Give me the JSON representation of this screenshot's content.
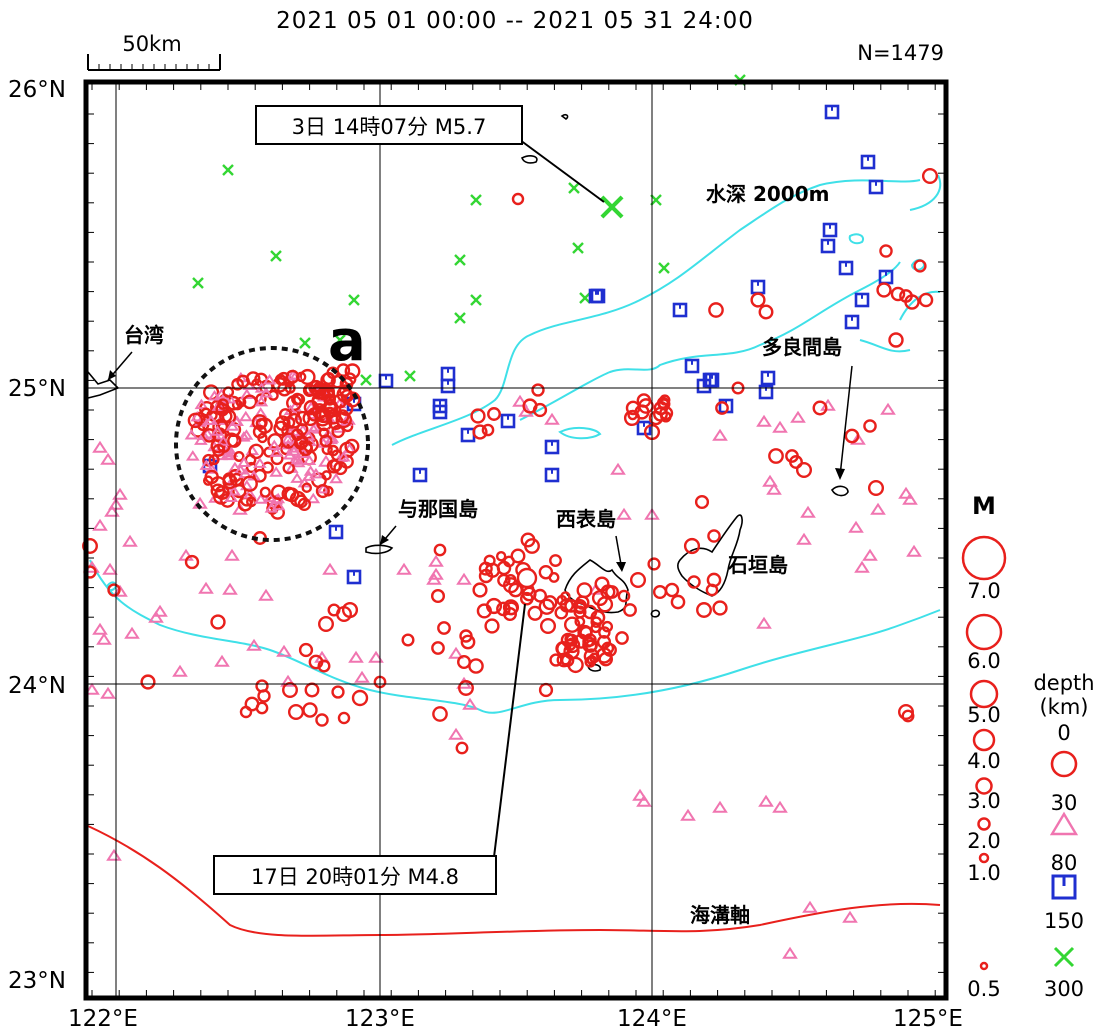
{
  "header": {
    "period": "2021 05 01 00:00 -- 2021 05 31 24:00",
    "count": "N=1479",
    "scale_label": "50km"
  },
  "axes": {
    "lat_labels": [
      "26°N",
      "25°N",
      "24°N",
      "23°N"
    ],
    "lon_labels": [
      "122°E",
      "123°E",
      "124°E",
      "125°E"
    ]
  },
  "map_labels": {
    "taiwan": "台湾",
    "yonaguni": "与那国島",
    "iriomote": "西表島",
    "ishigaki": "石垣島",
    "tarama": "多良間島",
    "depth_contour": "水深 2000m",
    "trench_axis": "海溝軸",
    "cluster": "a"
  },
  "annotations": {
    "event1": "3日 14時07分 M5.7",
    "event2": "17日 20時01分 M4.8"
  },
  "legend": {
    "magnitude_title": "M",
    "magnitudes": [
      "7.0",
      "6.0",
      "5.0",
      "4.0",
      "3.0",
      "2.0",
      "1.0",
      "0.5"
    ],
    "depth_title_1": "depth",
    "depth_title_2": "(km)",
    "depths": [
      "0",
      "30",
      "80",
      "150",
      "300"
    ]
  },
  "colors": {
    "shallow": "#e8201c",
    "mid": "#f075b0",
    "deep": "#1f2fd0",
    "very_deep": "#33d633",
    "contour": "#3fe0e8",
    "trench": "#e8201c",
    "frame": "#000000"
  },
  "symbols": {
    "depth_0_30": "circle",
    "depth_30_80": "triangle",
    "depth_80_150": "square",
    "depth_150_300": "cross"
  }
}
